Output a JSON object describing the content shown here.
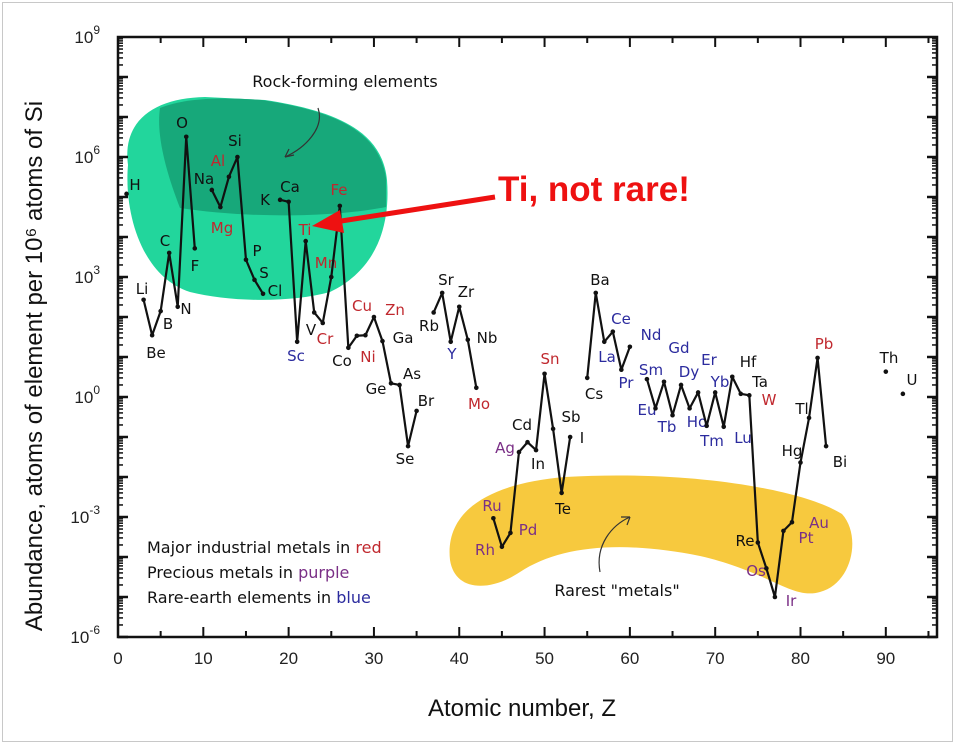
{
  "chart_data": {
    "type": "line",
    "title": "",
    "xlabel": "Atomic number, Z",
    "ylabel": "Abundance, atoms of element per 10⁶ atoms of Si",
    "xlim": [
      0,
      96
    ],
    "ylim": [
      1e-06,
      1000000000.0
    ],
    "yscale": "log",
    "x_ticks": [
      0,
      10,
      20,
      30,
      40,
      50,
      60,
      70,
      80,
      90
    ],
    "y_tick_exponents": [
      -6,
      -3,
      0,
      3,
      6,
      9
    ],
    "y_tick_base": "10",
    "grid": false,
    "colors": {
      "line": "#111111",
      "industrial": "#c0282e",
      "precious": "#7a2f86",
      "rare_earth": "#2b2b9e",
      "default": "#111111",
      "rock_region": "#22d69c",
      "rock_region_dark": "#17a87a",
      "rare_region": "#f7c93e",
      "callout": "#ee1111"
    },
    "series": [
      {
        "points": [
          [
            "H",
            1,
            120000.0,
            ""
          ]
        ]
      },
      {
        "points": [
          [
            "Li",
            3,
            270,
            ""
          ],
          [
            "Be",
            4,
            35,
            ""
          ],
          [
            "B",
            5,
            140,
            ""
          ],
          [
            "C",
            6,
            4000,
            ""
          ],
          [
            "N",
            7,
            180,
            ""
          ],
          [
            "O",
            8,
            3200000.0,
            ""
          ],
          [
            "F",
            9,
            5200,
            ""
          ]
        ]
      },
      {
        "points": [
          [
            "Na",
            11,
            150000.0,
            ""
          ],
          [
            "Mg",
            12,
            56000.0,
            "industrial"
          ],
          [
            "Al",
            13,
            320000.0,
            "industrial"
          ],
          [
            "Si",
            14,
            1000000.0,
            ""
          ],
          [
            "P",
            15,
            2700,
            ""
          ],
          [
            "S",
            16,
            850,
            ""
          ],
          [
            "Cl",
            17,
            380,
            ""
          ]
        ]
      },
      {
        "points": [
          [
            "K",
            19,
            85000.0,
            ""
          ],
          [
            "Ca",
            20,
            76000.0,
            ""
          ],
          [
            "Sc",
            21,
            24,
            "rare_earth"
          ],
          [
            "Ti",
            22,
            7900,
            "industrial"
          ],
          [
            "V",
            23,
            130,
            ""
          ],
          [
            "Cr",
            24,
            71,
            "industrial"
          ],
          [
            "Mn",
            25,
            1000,
            "industrial"
          ],
          [
            "Fe",
            26,
            60000.0,
            "industrial"
          ],
          [
            "Co",
            27,
            17,
            ""
          ],
          [
            "Ni",
            28,
            34,
            "industrial"
          ],
          [
            "Cu",
            29,
            35,
            "industrial"
          ],
          [
            "Zn",
            30,
            100,
            "industrial"
          ],
          [
            "Ga",
            31,
            25,
            ""
          ],
          [
            "Ge",
            32,
            2.2,
            ""
          ],
          [
            "As",
            33,
            2.0,
            ""
          ],
          [
            "Se",
            34,
            0.059,
            ""
          ],
          [
            "Br",
            35,
            0.45,
            ""
          ]
        ]
      },
      {
        "points": [
          [
            "Rb",
            37,
            130,
            ""
          ],
          [
            "Sr",
            38,
            400,
            ""
          ],
          [
            "Y",
            39,
            24,
            "rare_earth"
          ],
          [
            "Zr",
            40,
            180,
            ""
          ],
          [
            "Nb",
            41,
            27,
            ""
          ],
          [
            "Mo",
            42,
            1.7,
            "industrial"
          ]
        ]
      },
      {
        "points": [
          [
            "Ru",
            44,
            0.00093,
            "precious"
          ],
          [
            "Rh",
            45,
            0.00018,
            "precious"
          ],
          [
            "Pd",
            46,
            0.0004,
            "precious"
          ],
          [
            "Ag",
            47,
            0.042,
            "precious"
          ],
          [
            "Cd",
            48,
            0.074,
            ""
          ],
          [
            "In",
            49,
            0.047,
            ""
          ],
          [
            "Sn",
            50,
            3.8,
            "industrial"
          ],
          [
            "Sb",
            51,
            0.16,
            ""
          ],
          [
            "Te",
            52,
            0.004,
            ""
          ],
          [
            "I",
            53,
            0.1,
            ""
          ]
        ]
      },
      {
        "points": [
          [
            "Cs",
            55,
            3.0,
            ""
          ],
          [
            "Ba",
            56,
            400,
            ""
          ],
          [
            "La",
            57,
            24,
            "rare_earth"
          ],
          [
            "Ce",
            58,
            43,
            "rare_earth"
          ],
          [
            "Pr",
            59,
            4.8,
            "rare_earth"
          ],
          [
            "Nd",
            60,
            18,
            "rare_earth"
          ]
        ]
      },
      {
        "points": [
          [
            "Sm",
            62,
            2.8,
            "rare_earth"
          ],
          [
            "Eu",
            63,
            0.52,
            "rare_earth"
          ],
          [
            "Gd",
            64,
            2.4,
            "rare_earth"
          ],
          [
            "Tb",
            65,
            0.35,
            "rare_earth"
          ],
          [
            "Dy",
            66,
            2.0,
            "rare_earth"
          ],
          [
            "Ho",
            67,
            0.52,
            "rare_earth"
          ],
          [
            "Er",
            68,
            1.3,
            "rare_earth"
          ],
          [
            "Tm",
            69,
            0.19,
            "rare_earth"
          ],
          [
            "Yb",
            70,
            1.3,
            "rare_earth"
          ],
          [
            "Lu",
            71,
            0.18,
            "rare_earth"
          ],
          [
            "Hf",
            72,
            3.2,
            ""
          ],
          [
            "Ta",
            73,
            1.2,
            ""
          ],
          [
            "W",
            74,
            1.1,
            "industrial"
          ],
          [
            "Re",
            75,
            0.00023,
            ""
          ],
          [
            "Os",
            76,
            5.2e-05,
            "precious"
          ],
          [
            "Ir",
            77,
            1e-05,
            "precious"
          ],
          [
            "Pt",
            78,
            0.00045,
            "precious"
          ],
          [
            "Au",
            79,
            0.00074,
            "precious"
          ],
          [
            "Hg",
            80,
            0.023,
            ""
          ],
          [
            "Tl",
            81,
            0.3,
            ""
          ],
          [
            "Pb",
            82,
            9.5,
            "industrial"
          ],
          [
            "Bi",
            83,
            0.059,
            ""
          ]
        ]
      },
      {
        "points": [
          [
            "Th",
            90,
            4.3,
            ""
          ]
        ]
      },
      {
        "points": [
          [
            "U",
            92,
            1.2,
            ""
          ]
        ]
      }
    ],
    "annotations": {
      "rock_forming": "Rock-forming elements",
      "rarest": "Rarest \"metals\"",
      "callout": "Ti, not rare!"
    },
    "legend": [
      {
        "prefix": "Major industrial metals in ",
        "word": "red",
        "category": "industrial"
      },
      {
        "prefix": "Precious metals in ",
        "word": "purple",
        "category": "precious"
      },
      {
        "prefix": "Rare-earth elements in ",
        "word": "blue",
        "category": "rare_earth"
      }
    ]
  }
}
